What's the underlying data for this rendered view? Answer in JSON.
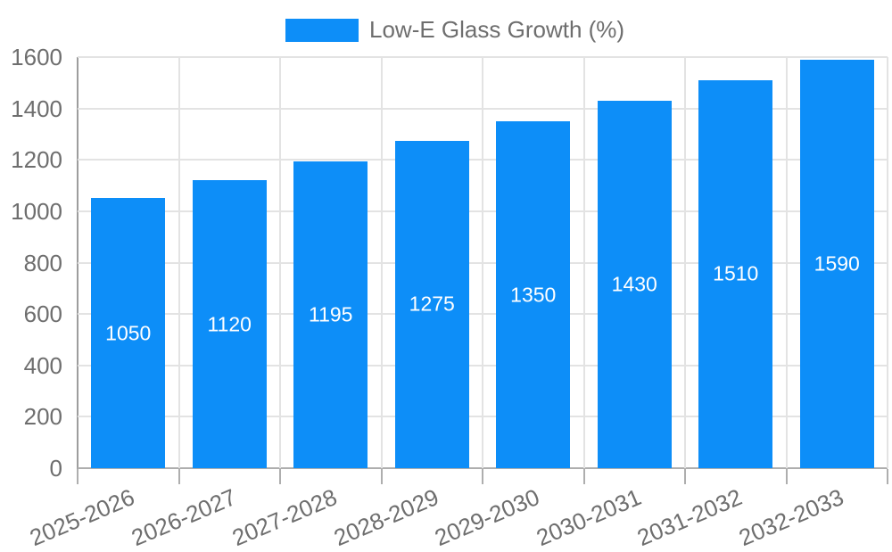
{
  "chart_data": {
    "type": "bar",
    "title": "",
    "legend_label": "Low-E Glass Growth (%)",
    "legend_position": "top",
    "categories": [
      "2025-2026",
      "2026-2027",
      "2027-2028",
      "2028-2029",
      "2029-2030",
      "2030-2031",
      "2031-2032",
      "2032-2033"
    ],
    "series": [
      {
        "name": "Low-E Glass Growth (%)",
        "values": [
          1050,
          1120,
          1195,
          1275,
          1350,
          1430,
          1510,
          1590
        ]
      }
    ],
    "bar_value_labels": [
      "1050",
      "1120",
      "1195",
      "1275",
      "1350",
      "1430",
      "1510",
      "1590"
    ],
    "xlabel": "",
    "ylabel": "",
    "ylim": [
      0,
      1600
    ],
    "ytick_step": 200,
    "ytick_labels": [
      "0",
      "200",
      "400",
      "600",
      "800",
      "1000",
      "1200",
      "1400",
      "1600"
    ],
    "grid": true,
    "colors": {
      "bar": "#0d8ef8",
      "axis_text": "#6e6e6e",
      "grid_line": "#e3e3e3",
      "axis_line": "#aeaeae",
      "bar_label_text": "#ffffff",
      "background": "#ffffff"
    }
  }
}
